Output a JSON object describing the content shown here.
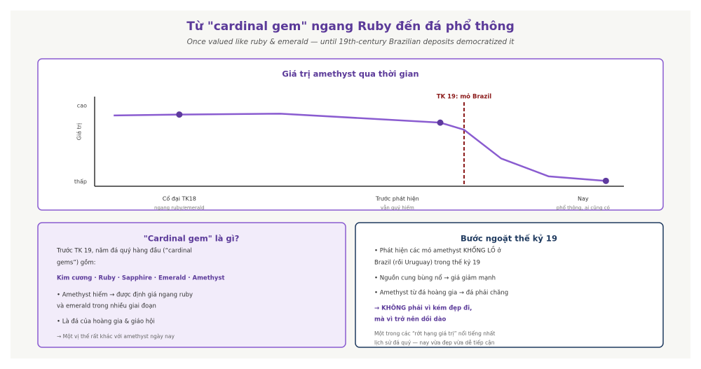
{
  "header": {
    "title": "Từ \"cardinal gem\" ngang Ruby đến đá phổ thông",
    "subtitle": "Once valued like ruby & emerald — until 19th-century Brazilian deposits democratized it"
  },
  "chart_data": {
    "type": "line",
    "title": "Giá trị amethyst qua thời gian",
    "ylabel": "Giá trị",
    "xlim": [
      0,
      100
    ],
    "ylim": [
      0,
      10
    ],
    "yticks": [
      {
        "value": 9,
        "label": "cao"
      },
      {
        "value": 0.5,
        "label": "thấp"
      }
    ],
    "xticks": [
      {
        "value": 16,
        "label": "Cổ đại TK18"
      },
      {
        "value": 57.2,
        "label": "Trước phát hiện"
      },
      {
        "value": 92.3,
        "label": "Nay"
      }
    ],
    "xtick_notes": [
      "ngang ruby/emerald",
      "vẫn quý hiếm",
      "phổ thông, ai cũng có"
    ],
    "series": [
      {
        "color": "#8a5cd0",
        "marker_color": "#5e3a9e",
        "x": [
          3.6,
          16,
          35.1,
          65.3,
          69.8,
          76.8,
          85.8,
          96.6
        ],
        "values": [
          7.9,
          8.0,
          8.1,
          7.1,
          6.3,
          3.1,
          1.1,
          0.6
        ],
        "markers": [
          1,
          3,
          7
        ]
      }
    ],
    "vline": {
      "x": 69.8,
      "label": "TK 19: mỏ Brazil",
      "color": "#8b1a1a"
    }
  },
  "left_box": {
    "title": "\"Cardinal gem\" là gì?",
    "lines": [
      "Trước TK 19, năm đá quý hàng đầu (“cardinal",
      "gems”) gồm:"
    ],
    "gems": "Kim cương · Ruby · Sapphire · Emerald · Amethyst",
    "bullets": [
      "• Amethyst hiếm → được định giá ngang ruby",
      "và emerald trong nhiều giai đoạn",
      "• Là đá của hoàng gia & giáo hội"
    ],
    "note": "→ Một vị thế rất khác với amethyst ngày nay"
  },
  "right_box": {
    "title": "Bước ngoặt thế kỷ 19",
    "bullets": [
      "• Phát hiện các mỏ amethyst KHỔNG LỒ ở",
      "Brazil (rồi Uruguay) trong thế kỷ 19",
      "• Nguồn cung bùng nổ → giá giảm mạnh",
      "• Amethyst từ đá hoàng gia → đá phải chăng"
    ],
    "emphasis": [
      "→ KHÔNG phải vì kém đẹp đi,",
      "mà vì trở nên dồi dào"
    ],
    "note": [
      "Một trong các “rớt hạng giá trị” nổi tiếng nhất",
      "lịch sử đá quý — nay vừa đẹp vừa dễ tiếp cận"
    ]
  }
}
